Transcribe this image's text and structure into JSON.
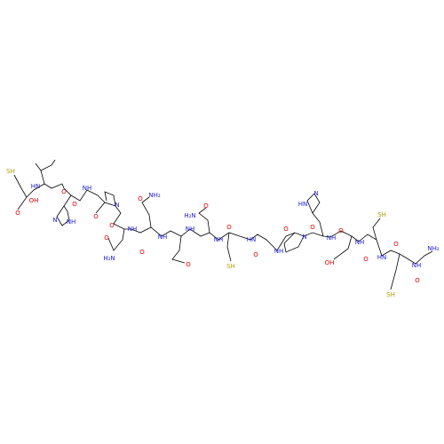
{
  "atoms": [
    "SH",
    "O",
    "OH",
    "HN",
    "O",
    "N",
    "NH",
    "O",
    "NH",
    "O",
    "N",
    "O",
    "H₂N",
    "O",
    "NH",
    "O",
    "NH₂",
    "O",
    "NH",
    "O",
    "NH",
    "H₂N",
    "O",
    "NH",
    "O",
    "SH",
    "HN",
    "O",
    "NH",
    "O",
    "N",
    "O",
    "NH",
    "HN",
    "N",
    "O",
    "OH",
    "NH",
    "O",
    "SH",
    "HN",
    "O",
    "SH",
    "NH",
    "O",
    "NH₂"
  ]
}
